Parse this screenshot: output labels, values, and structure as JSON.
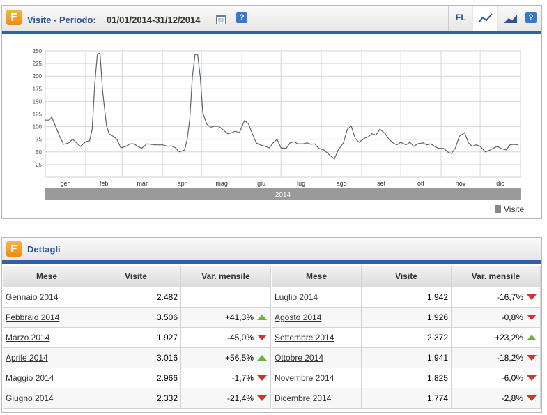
{
  "header": {
    "title": "Visite - Periodo:",
    "period": "01/01/2014-31/12/2014",
    "fl": "FL",
    "help": "?"
  },
  "chart_data": {
    "type": "line",
    "x": [
      1,
      4,
      6,
      9,
      12,
      15,
      19,
      22,
      25,
      28,
      32,
      35,
      37,
      39,
      41,
      43,
      45,
      48,
      50,
      53,
      56,
      59,
      63,
      66,
      69,
      72,
      75,
      79,
      82,
      85,
      88,
      91,
      95,
      98,
      101,
      104,
      108,
      110,
      112,
      114,
      116,
      118,
      120,
      122,
      125,
      128,
      131,
      134,
      137,
      141,
      144,
      147,
      150,
      154,
      157,
      160,
      163,
      166,
      170,
      173,
      176,
      179,
      182,
      186,
      189,
      192,
      195,
      199,
      202,
      205,
      208,
      211,
      215,
      218,
      221,
      223,
      226,
      230,
      233,
      236,
      239,
      242,
      246,
      249,
      252,
      255,
      258,
      262,
      265,
      268,
      271,
      274,
      278,
      281,
      284,
      287,
      291,
      294,
      297,
      300,
      303,
      307,
      310,
      313,
      316,
      319,
      323,
      326,
      329,
      332,
      335,
      339,
      342,
      345,
      348,
      351,
      355,
      358,
      361,
      364
    ],
    "series": [
      {
        "name": "Visite",
        "color": "#5a6470",
        "values": [
          113,
          113,
          119,
          100,
          81,
          65,
          68,
          75,
          68,
          61,
          70,
          72,
          95,
          185,
          243,
          246,
          171,
          102,
          86,
          81,
          75,
          58,
          61,
          66,
          66,
          61,
          57,
          66,
          65,
          64,
          64,
          64,
          61,
          62,
          58,
          50,
          54,
          75,
          116,
          199,
          243,
          243,
          199,
          127,
          105,
          99,
          101,
          101,
          95,
          86,
          88,
          91,
          88,
          112,
          106,
          86,
          68,
          64,
          61,
          58,
          68,
          75,
          58,
          57,
          68,
          70,
          66,
          66,
          68,
          65,
          66,
          57,
          54,
          47,
          40,
          36,
          54,
          68,
          95,
          101,
          77,
          69,
          77,
          80,
          86,
          83,
          95,
          86,
          75,
          68,
          64,
          69,
          64,
          69,
          61,
          66,
          68,
          64,
          66,
          61,
          57,
          57,
          50,
          47,
          58,
          81,
          88,
          68,
          61,
          64,
          61,
          50,
          53,
          57,
          61,
          57,
          54,
          64,
          65,
          64
        ]
      }
    ],
    "xlim": [
      1,
      366
    ],
    "xticks": [
      {
        "value": 1,
        "label": "gen"
      },
      {
        "value": 32,
        "label": "feb"
      },
      {
        "value": 60,
        "label": "mar"
      },
      {
        "value": 91,
        "label": "apr"
      },
      {
        "value": 121,
        "label": "mag"
      },
      {
        "value": 152,
        "label": "giu"
      },
      {
        "value": 182,
        "label": "lug"
      },
      {
        "value": 213,
        "label": "ago"
      },
      {
        "value": 244,
        "label": "set"
      },
      {
        "value": 274,
        "label": "ott"
      },
      {
        "value": 305,
        "label": "nov"
      },
      {
        "value": 335,
        "label": "dic"
      }
    ],
    "xlabel": "2014",
    "ylim": [
      0,
      250
    ],
    "yticks": [
      25,
      50,
      75,
      100,
      125,
      150,
      175,
      200,
      225,
      250
    ],
    "grid": true,
    "legend": "bottom-right"
  },
  "details": {
    "title": "Dettagli",
    "columns": [
      "Mese",
      "Visite",
      "Var. mensile"
    ],
    "rows": [
      {
        "month": "Gennaio 2014",
        "visits": "2.482",
        "change": null,
        "trend": null
      },
      {
        "month": "Febbraio 2014",
        "visits": "3.506",
        "change": "+41,3%",
        "trend": "up"
      },
      {
        "month": "Marzo 2014",
        "visits": "1.927",
        "change": "-45,0%",
        "trend": "down"
      },
      {
        "month": "Aprile 2014",
        "visits": "3.016",
        "change": "+56,5%",
        "trend": "up"
      },
      {
        "month": "Maggio 2014",
        "visits": "2.966",
        "change": "-1,7%",
        "trend": "down"
      },
      {
        "month": "Giugno 2014",
        "visits": "2.332",
        "change": "-21,4%",
        "trend": "down"
      },
      {
        "month": "Luglio 2014",
        "visits": "1.942",
        "change": "-16,7%",
        "trend": "down"
      },
      {
        "month": "Agosto 2014",
        "visits": "1.926",
        "change": "-0,8%",
        "trend": "down"
      },
      {
        "month": "Settembre 2014",
        "visits": "2.372",
        "change": "+23,2%",
        "trend": "up"
      },
      {
        "month": "Ottobre 2014",
        "visits": "1.941",
        "change": "-18,2%",
        "trend": "down"
      },
      {
        "month": "Novembre 2014",
        "visits": "1.825",
        "change": "-6,0%",
        "trend": "down"
      },
      {
        "month": "Dicembre 2014",
        "visits": "1.774",
        "change": "-2,8%",
        "trend": "down"
      }
    ]
  }
}
